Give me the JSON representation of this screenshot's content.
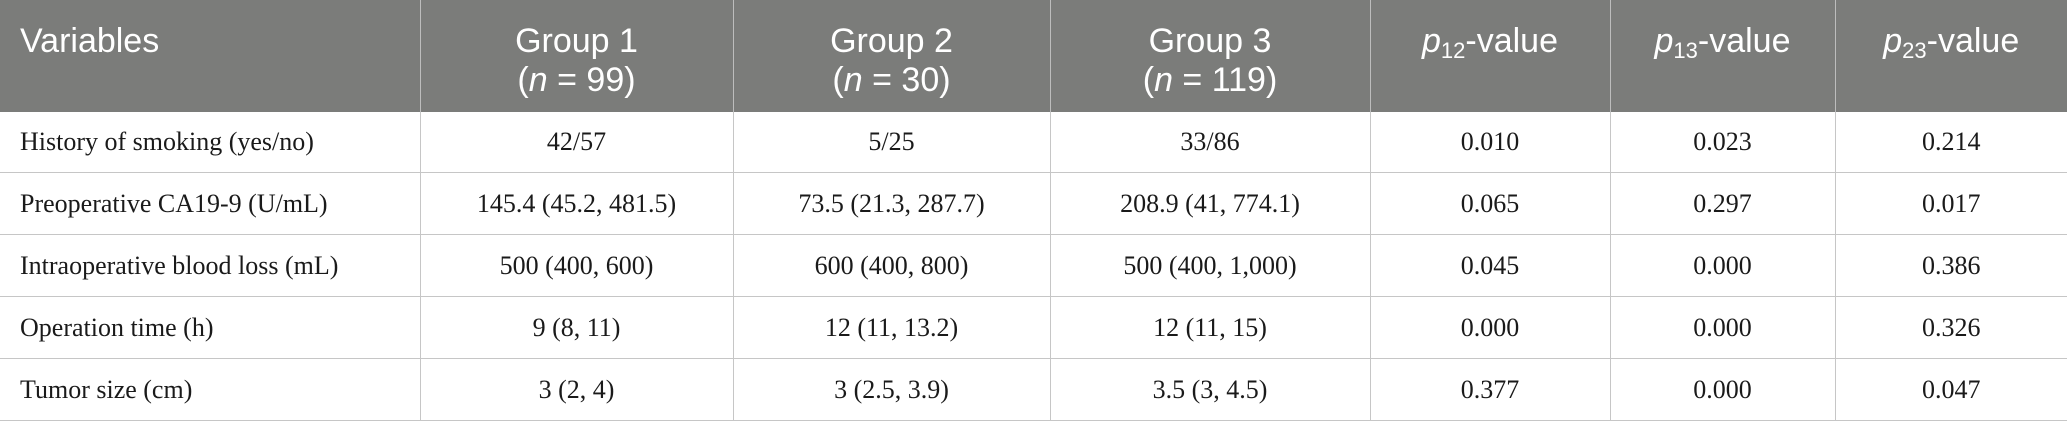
{
  "table": {
    "headers": [
      {
        "line1": "Variables",
        "line2": ""
      },
      {
        "line1": "Group 1",
        "n_label": "n",
        "n_value": " = 99"
      },
      {
        "line1": "Group 2",
        "n_label": "n",
        "n_value": " = 30"
      },
      {
        "line1": "Group 3",
        "n_label": "n",
        "n_value": " = 119"
      },
      {
        "p": "p",
        "sub": "12",
        "suffix": "-value"
      },
      {
        "p": "p",
        "sub": "13",
        "suffix": "-value"
      },
      {
        "p": "p",
        "sub": "23",
        "suffix": "-value"
      }
    ],
    "rows": [
      [
        "History of smoking (yes/no)",
        "42/57",
        "5/25",
        "33/86",
        "0.010",
        "0.023",
        "0.214"
      ],
      [
        "Preoperative CA19-9 (U/mL)",
        "145.4 (45.2, 481.5)",
        "73.5 (21.3, 287.7)",
        "208.9 (41, 774.1)",
        "0.065",
        "0.297",
        "0.017"
      ],
      [
        "Intraoperative blood loss (mL)",
        "500 (400, 600)",
        "600 (400, 800)",
        "500 (400, 1,000)",
        "0.045",
        "0.000",
        "0.386"
      ],
      [
        "Operation time (h)",
        "9 (8, 11)",
        "12 (11, 13.2)",
        "12 (11, 15)",
        "0.000",
        "0.000",
        "0.326"
      ],
      [
        "Tumor size (cm)",
        "3 (2, 4)",
        "3 (2.5, 3.9)",
        "3.5 (3, 4.5)",
        "0.377",
        "0.000",
        "0.047"
      ]
    ]
  },
  "colors": {
    "header_bg": "#7b7c7a",
    "header_text": "#ffffff",
    "rule": "#c6c6c6"
  }
}
